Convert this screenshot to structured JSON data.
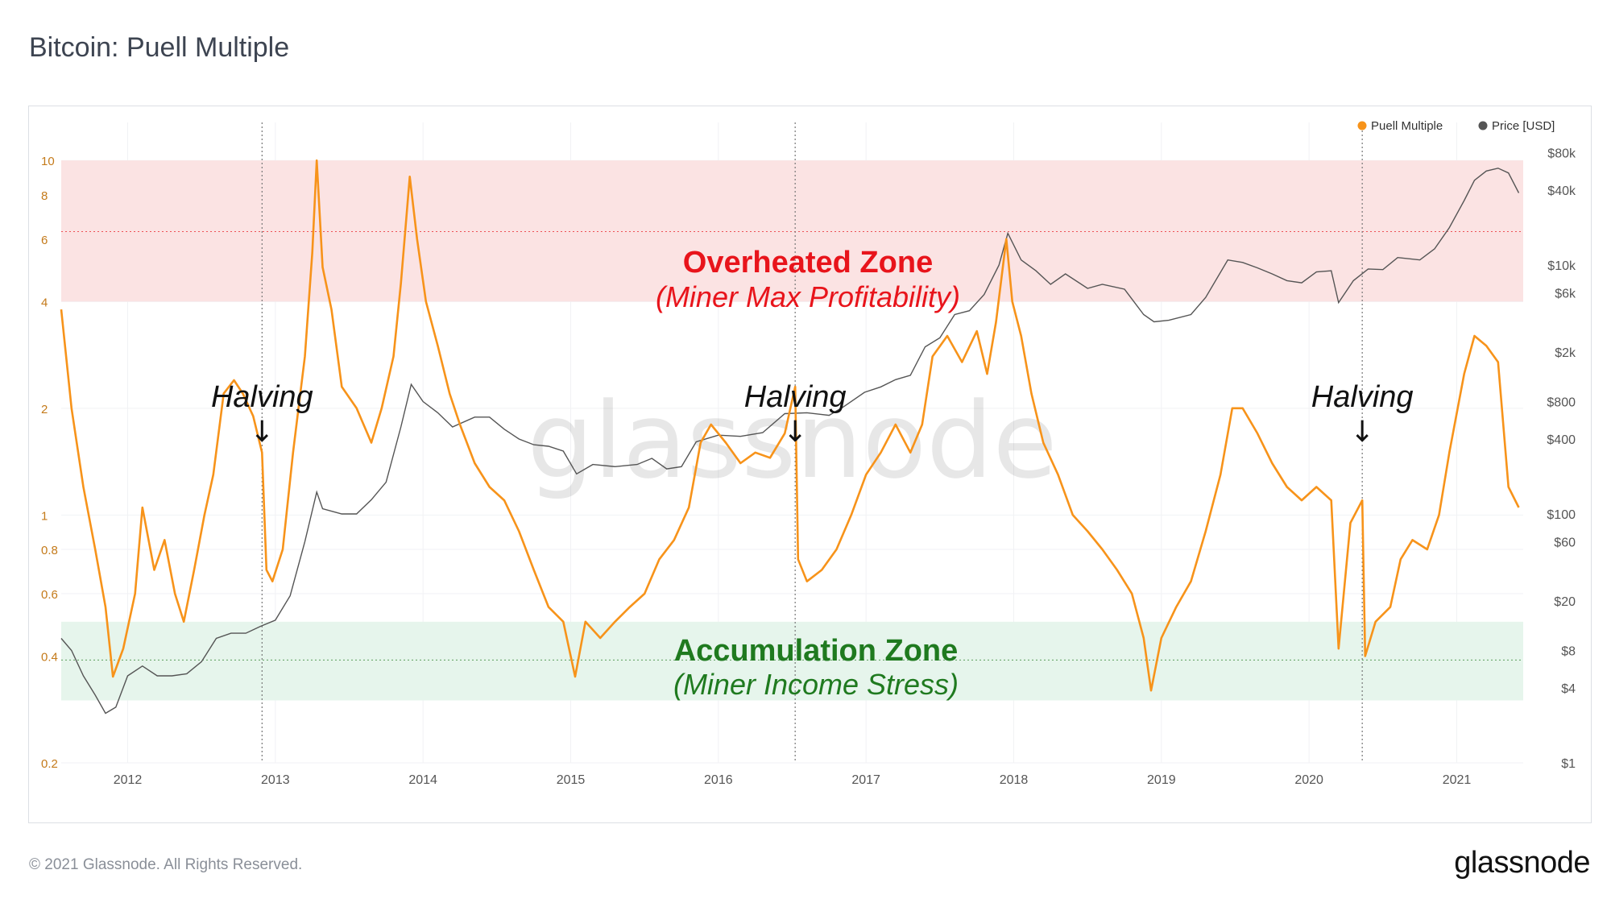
{
  "page": {
    "title": "Bitcoin: Puell Multiple",
    "copyright": "© 2021 Glassnode. All Rights Reserved.",
    "brand": "glassnode",
    "watermark": "glassnode"
  },
  "chart_data": {
    "type": "line",
    "title": "Bitcoin: Puell Multiple",
    "legend_position": "top-right",
    "grid": true,
    "x_ticks": [
      "2012",
      "2013",
      "2014",
      "2015",
      "2016",
      "2017",
      "2018",
      "2019",
      "2020",
      "2021"
    ],
    "x_range": [
      2011.55,
      2021.45
    ],
    "y_left": {
      "scale": "log",
      "range": [
        0.2,
        12.8
      ],
      "ticks": [
        0.2,
        0.4,
        0.6,
        0.8,
        1,
        2,
        4,
        6,
        8,
        10
      ]
    },
    "y_right": {
      "scale": "log",
      "range": [
        1,
        140000
      ],
      "ticks": [
        1,
        4,
        8,
        20,
        60,
        100,
        400,
        800,
        2000,
        6000,
        10000,
        40000,
        80000
      ],
      "tick_labels": [
        "$1",
        "$4",
        "$8",
        "$20",
        "$60",
        "$100",
        "$400",
        "$800",
        "$2k",
        "$6k",
        "$10k",
        "$40k",
        "$80k"
      ]
    },
    "bands": [
      {
        "name": "overheated",
        "label": "Overheated Zone",
        "sublabel": "(Miner Max Profitability)",
        "from": 4.0,
        "to": 10.0,
        "color": "#fbe3e3",
        "label_color": "#e8141b",
        "mid_line": 6.3
      },
      {
        "name": "accumulation",
        "label": "Accumulation Zone",
        "sublabel": "(Miner Income Stress)",
        "from": 0.3,
        "to": 0.5,
        "color": "#e6f5ec",
        "label_color": "#1f7a1f",
        "mid_line": 0.39
      }
    ],
    "annotations": [
      {
        "label": "Halving",
        "arrow": "↓",
        "x": 2012.91
      },
      {
        "label": "Halving",
        "arrow": "↓",
        "x": 2016.52
      },
      {
        "label": "Halving",
        "arrow": "↓",
        "x": 2020.36
      }
    ],
    "series": [
      {
        "name": "Puell Multiple",
        "color": "#f7931a",
        "axis": "left",
        "points": [
          [
            2011.55,
            3.8
          ],
          [
            2011.62,
            2.0
          ],
          [
            2011.7,
            1.2
          ],
          [
            2011.78,
            0.8
          ],
          [
            2011.85,
            0.55
          ],
          [
            2011.9,
            0.35
          ],
          [
            2011.97,
            0.42
          ],
          [
            2012.05,
            0.6
          ],
          [
            2012.1,
            1.05
          ],
          [
            2012.18,
            0.7
          ],
          [
            2012.25,
            0.85
          ],
          [
            2012.32,
            0.6
          ],
          [
            2012.38,
            0.5
          ],
          [
            2012.45,
            0.7
          ],
          [
            2012.52,
            1.0
          ],
          [
            2012.58,
            1.3
          ],
          [
            2012.65,
            2.2
          ],
          [
            2012.72,
            2.4
          ],
          [
            2012.78,
            2.2
          ],
          [
            2012.85,
            1.9
          ],
          [
            2012.91,
            1.5
          ],
          [
            2012.94,
            0.7
          ],
          [
            2012.98,
            0.65
          ],
          [
            2013.05,
            0.8
          ],
          [
            2013.12,
            1.5
          ],
          [
            2013.2,
            2.8
          ],
          [
            2013.25,
            5.5
          ],
          [
            2013.28,
            10.0
          ],
          [
            2013.32,
            5.0
          ],
          [
            2013.38,
            3.8
          ],
          [
            2013.45,
            2.3
          ],
          [
            2013.55,
            2.0
          ],
          [
            2013.65,
            1.6
          ],
          [
            2013.72,
            2.0
          ],
          [
            2013.8,
            2.8
          ],
          [
            2013.85,
            4.5
          ],
          [
            2013.91,
            9.0
          ],
          [
            2013.96,
            6.0
          ],
          [
            2014.02,
            4.0
          ],
          [
            2014.1,
            3.0
          ],
          [
            2014.18,
            2.2
          ],
          [
            2014.25,
            1.8
          ],
          [
            2014.35,
            1.4
          ],
          [
            2014.45,
            1.2
          ],
          [
            2014.55,
            1.1
          ],
          [
            2014.65,
            0.9
          ],
          [
            2014.75,
            0.7
          ],
          [
            2014.85,
            0.55
          ],
          [
            2014.95,
            0.5
          ],
          [
            2015.03,
            0.35
          ],
          [
            2015.1,
            0.5
          ],
          [
            2015.2,
            0.45
          ],
          [
            2015.3,
            0.5
          ],
          [
            2015.4,
            0.55
          ],
          [
            2015.5,
            0.6
          ],
          [
            2015.6,
            0.75
          ],
          [
            2015.7,
            0.85
          ],
          [
            2015.8,
            1.05
          ],
          [
            2015.88,
            1.6
          ],
          [
            2015.95,
            1.8
          ],
          [
            2016.05,
            1.6
          ],
          [
            2016.15,
            1.4
          ],
          [
            2016.25,
            1.5
          ],
          [
            2016.35,
            1.45
          ],
          [
            2016.45,
            1.7
          ],
          [
            2016.52,
            2.3
          ],
          [
            2016.54,
            0.75
          ],
          [
            2016.6,
            0.65
          ],
          [
            2016.7,
            0.7
          ],
          [
            2016.8,
            0.8
          ],
          [
            2016.9,
            1.0
          ],
          [
            2017.0,
            1.3
          ],
          [
            2017.1,
            1.5
          ],
          [
            2017.2,
            1.8
          ],
          [
            2017.3,
            1.5
          ],
          [
            2017.38,
            1.8
          ],
          [
            2017.45,
            2.8
          ],
          [
            2017.55,
            3.2
          ],
          [
            2017.65,
            2.7
          ],
          [
            2017.75,
            3.3
          ],
          [
            2017.82,
            2.5
          ],
          [
            2017.88,
            3.5
          ],
          [
            2017.95,
            6.0
          ],
          [
            2017.99,
            4.0
          ],
          [
            2018.05,
            3.2
          ],
          [
            2018.12,
            2.2
          ],
          [
            2018.2,
            1.6
          ],
          [
            2018.3,
            1.3
          ],
          [
            2018.4,
            1.0
          ],
          [
            2018.5,
            0.9
          ],
          [
            2018.6,
            0.8
          ],
          [
            2018.7,
            0.7
          ],
          [
            2018.8,
            0.6
          ],
          [
            2018.88,
            0.45
          ],
          [
            2018.93,
            0.32
          ],
          [
            2019.0,
            0.45
          ],
          [
            2019.1,
            0.55
          ],
          [
            2019.2,
            0.65
          ],
          [
            2019.3,
            0.9
          ],
          [
            2019.4,
            1.3
          ],
          [
            2019.48,
            2.0
          ],
          [
            2019.55,
            2.0
          ],
          [
            2019.65,
            1.7
          ],
          [
            2019.75,
            1.4
          ],
          [
            2019.85,
            1.2
          ],
          [
            2019.95,
            1.1
          ],
          [
            2020.05,
            1.2
          ],
          [
            2020.15,
            1.1
          ],
          [
            2020.2,
            0.42
          ],
          [
            2020.28,
            0.95
          ],
          [
            2020.36,
            1.1
          ],
          [
            2020.38,
            0.4
          ],
          [
            2020.45,
            0.5
          ],
          [
            2020.55,
            0.55
          ],
          [
            2020.62,
            0.75
          ],
          [
            2020.7,
            0.85
          ],
          [
            2020.8,
            0.8
          ],
          [
            2020.88,
            1.0
          ],
          [
            2020.95,
            1.5
          ],
          [
            2021.05,
            2.5
          ],
          [
            2021.12,
            3.2
          ],
          [
            2021.2,
            3.0
          ],
          [
            2021.28,
            2.7
          ],
          [
            2021.35,
            1.2
          ],
          [
            2021.42,
            1.05
          ]
        ]
      },
      {
        "name": "Price [USD]",
        "color": "#555555",
        "axis": "right",
        "points": [
          [
            2011.55,
            10
          ],
          [
            2011.62,
            8
          ],
          [
            2011.7,
            5
          ],
          [
            2011.78,
            3.5
          ],
          [
            2011.85,
            2.5
          ],
          [
            2011.92,
            2.8
          ],
          [
            2012.0,
            5
          ],
          [
            2012.1,
            6
          ],
          [
            2012.2,
            5
          ],
          [
            2012.3,
            5
          ],
          [
            2012.4,
            5.2
          ],
          [
            2012.5,
            6.5
          ],
          [
            2012.6,
            10
          ],
          [
            2012.7,
            11
          ],
          [
            2012.8,
            11
          ],
          [
            2012.9,
            12.5
          ],
          [
            2013.0,
            14
          ],
          [
            2013.1,
            22
          ],
          [
            2013.2,
            60
          ],
          [
            2013.28,
            150
          ],
          [
            2013.32,
            110
          ],
          [
            2013.45,
            100
          ],
          [
            2013.55,
            100
          ],
          [
            2013.65,
            130
          ],
          [
            2013.75,
            180
          ],
          [
            2013.85,
            500
          ],
          [
            2013.92,
            1100
          ],
          [
            2014.0,
            800
          ],
          [
            2014.1,
            650
          ],
          [
            2014.2,
            500
          ],
          [
            2014.35,
            600
          ],
          [
            2014.45,
            600
          ],
          [
            2014.55,
            480
          ],
          [
            2014.65,
            400
          ],
          [
            2014.75,
            360
          ],
          [
            2014.85,
            350
          ],
          [
            2014.95,
            320
          ],
          [
            2015.04,
            210
          ],
          [
            2015.15,
            250
          ],
          [
            2015.3,
            240
          ],
          [
            2015.45,
            250
          ],
          [
            2015.55,
            280
          ],
          [
            2015.65,
            230
          ],
          [
            2015.75,
            240
          ],
          [
            2015.85,
            380
          ],
          [
            2016.0,
            430
          ],
          [
            2016.15,
            420
          ],
          [
            2016.3,
            450
          ],
          [
            2016.45,
            640
          ],
          [
            2016.6,
            650
          ],
          [
            2016.75,
            620
          ],
          [
            2016.85,
            730
          ],
          [
            2016.99,
            950
          ],
          [
            2017.1,
            1050
          ],
          [
            2017.2,
            1200
          ],
          [
            2017.3,
            1300
          ],
          [
            2017.4,
            2200
          ],
          [
            2017.5,
            2600
          ],
          [
            2017.6,
            4000
          ],
          [
            2017.7,
            4300
          ],
          [
            2017.8,
            5800
          ],
          [
            2017.9,
            10000
          ],
          [
            2017.96,
            18000
          ],
          [
            2018.05,
            11000
          ],
          [
            2018.15,
            9000
          ],
          [
            2018.25,
            7000
          ],
          [
            2018.35,
            8500
          ],
          [
            2018.5,
            6500
          ],
          [
            2018.6,
            7000
          ],
          [
            2018.75,
            6400
          ],
          [
            2018.88,
            4000
          ],
          [
            2018.95,
            3500
          ],
          [
            2019.05,
            3600
          ],
          [
            2019.2,
            4000
          ],
          [
            2019.3,
            5500
          ],
          [
            2019.45,
            11000
          ],
          [
            2019.55,
            10500
          ],
          [
            2019.65,
            9500
          ],
          [
            2019.75,
            8500
          ],
          [
            2019.85,
            7500
          ],
          [
            2019.95,
            7200
          ],
          [
            2020.05,
            8800
          ],
          [
            2020.15,
            9000
          ],
          [
            2020.2,
            5000
          ],
          [
            2020.3,
            7500
          ],
          [
            2020.4,
            9300
          ],
          [
            2020.5,
            9200
          ],
          [
            2020.6,
            11500
          ],
          [
            2020.75,
            11000
          ],
          [
            2020.85,
            13500
          ],
          [
            2020.95,
            20000
          ],
          [
            2021.05,
            33000
          ],
          [
            2021.12,
            48000
          ],
          [
            2021.2,
            57000
          ],
          [
            2021.28,
            60000
          ],
          [
            2021.35,
            55000
          ],
          [
            2021.42,
            38000
          ]
        ]
      }
    ]
  }
}
